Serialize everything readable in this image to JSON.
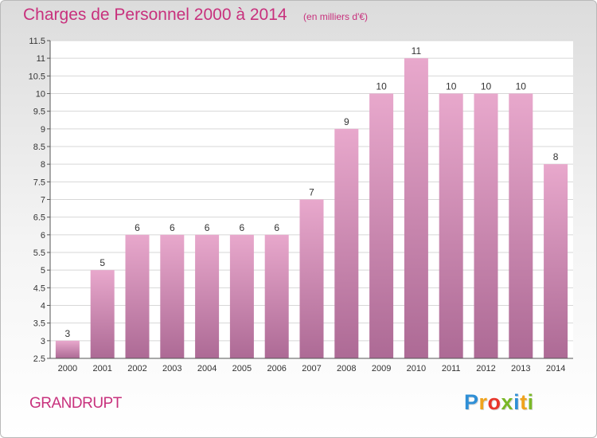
{
  "header": {
    "title": "Charges de Personnel 2000 à 2014",
    "subtitle": "(en milliers d'€)"
  },
  "footer": {
    "location": "GRANDRUPT",
    "logo_letters": [
      "P",
      "r",
      "o",
      "x",
      "i",
      "t",
      "i"
    ],
    "logo_colors": [
      "#2f8fd6",
      "#f0a31c",
      "#e8362b",
      "#7ab827",
      "#2f8fd6",
      "#f0a31c",
      "#7ab827"
    ]
  },
  "chart_data": {
    "type": "bar",
    "categories": [
      "2000",
      "2001",
      "2002",
      "2003",
      "2004",
      "2005",
      "2006",
      "2007",
      "2008",
      "2009",
      "2010",
      "2011",
      "2012",
      "2013",
      "2014"
    ],
    "values": [
      3,
      5,
      6,
      6,
      6,
      6,
      6,
      7,
      9,
      10,
      11,
      10,
      10,
      10,
      8
    ],
    "data_labels": [
      "3",
      "5",
      "6",
      "6",
      "6",
      "6",
      "6",
      "7",
      "9",
      "10",
      "11",
      "10",
      "10",
      "10",
      "8"
    ],
    "title": "Charges de Personnel 2000 à 2014",
    "xlabel": "",
    "ylabel": "",
    "ylim": [
      2.5,
      11.5
    ],
    "yticks": [
      2.5,
      3,
      3.5,
      4,
      4.5,
      5,
      5.5,
      6,
      6.5,
      7,
      7.5,
      8,
      8.5,
      9,
      9.5,
      10,
      10.5,
      11,
      11.5
    ],
    "ytick_labels": [
      "2.5",
      "3",
      "3.5",
      "4",
      "4.5",
      "5",
      "5.5",
      "6",
      "6.5",
      "7",
      "7.5",
      "8",
      "8.5",
      "9",
      "9.5",
      "10",
      "10.5",
      "11",
      "11.5"
    ],
    "grid": true,
    "bar_color_top": "#e8a8cc",
    "bar_color_bottom": "#ad6a95",
    "grid_color": "#d7d7d7"
  }
}
